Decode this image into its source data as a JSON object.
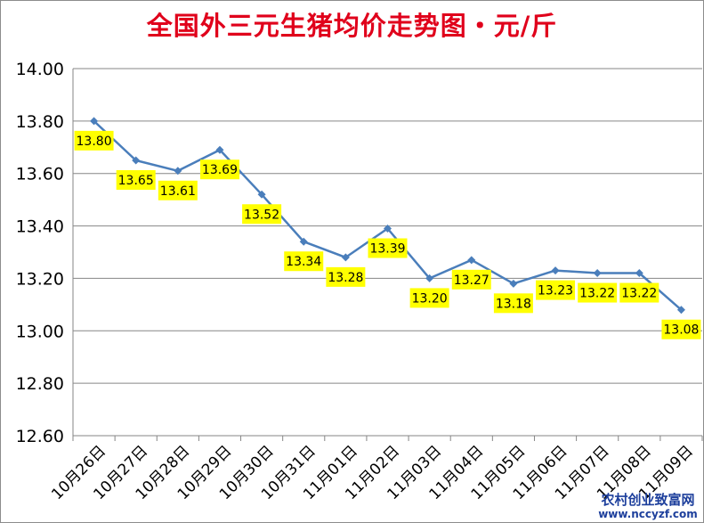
{
  "colors": {
    "title": "#e0001b",
    "line": "#4a7ebb",
    "label_bg": "#ffff00",
    "grid": "#868686",
    "watermark": "#1d3f9c"
  },
  "chart_data": {
    "type": "line",
    "title": "全国外三元生猪均价走势图・元/斤",
    "xlabel": "",
    "ylabel": "",
    "ylim": [
      12.6,
      14.0
    ],
    "y_ticks": [
      "14.00",
      "13.80",
      "13.60",
      "13.40",
      "13.20",
      "13.00",
      "12.80",
      "12.60"
    ],
    "grid": "horizontal",
    "legend": "none",
    "categories": [
      "10月26日",
      "10月27日",
      "10月28日",
      "10月29日",
      "10月30日",
      "10月31日",
      "11月01日",
      "11月02日",
      "11月03日",
      "11月04日",
      "11月05日",
      "11月06日",
      "11月07日",
      "11月08日",
      "11月09日"
    ],
    "series": [
      {
        "values": [
          13.8,
          13.65,
          13.61,
          13.69,
          13.52,
          13.34,
          13.28,
          13.39,
          13.2,
          13.27,
          13.18,
          13.23,
          13.22,
          13.22,
          13.08
        ],
        "labels": [
          "13.80",
          "13.65",
          "13.61",
          "13.69",
          "13.52",
          "13.34",
          "13.28",
          "13.39",
          "13.20",
          "13.27",
          "13.18",
          "13.23",
          "13.22",
          "13.22",
          "13.08"
        ]
      }
    ]
  },
  "watermark": {
    "line1": "农村创业致富网",
    "line2": "www.nccyzf.com"
  }
}
